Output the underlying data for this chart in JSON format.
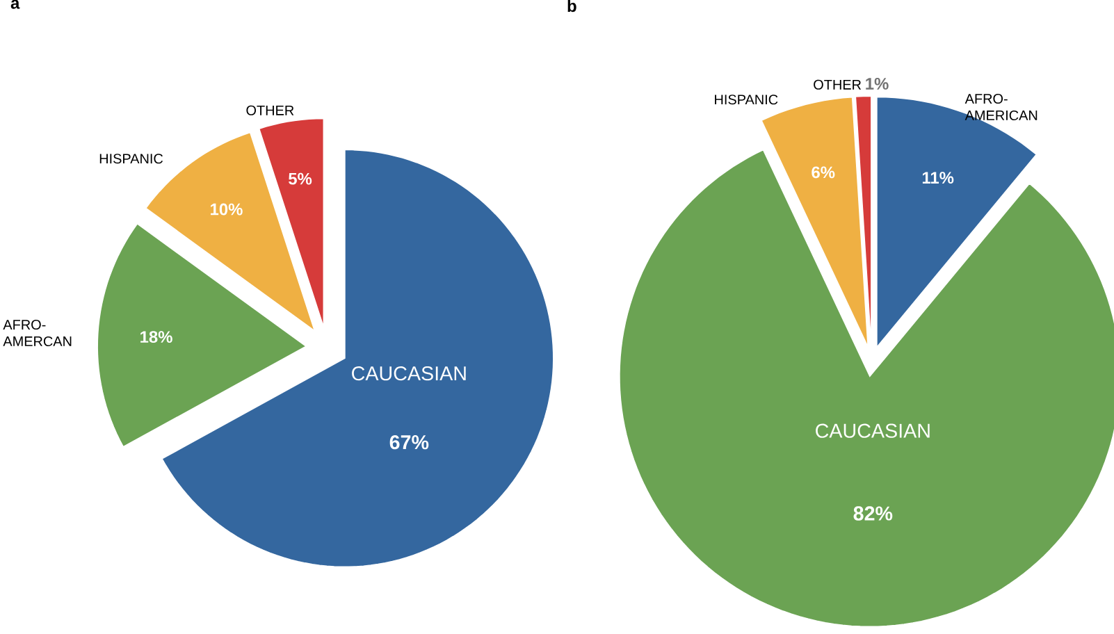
{
  "chart_data": [
    {
      "type": "pie",
      "title": "a",
      "categories": [
        "CAUCASIAN",
        "AFRO-AMERCAN",
        "HISPANIC",
        "OTHER"
      ],
      "values": [
        67,
        18,
        10,
        5
      ],
      "value_labels": [
        "67%",
        "18%",
        "10%",
        "5%"
      ],
      "colors": [
        "#34679f",
        "#6ba353",
        "#efb043",
        "#d63b3a"
      ]
    },
    {
      "type": "pie",
      "title": "b",
      "categories": [
        "AFRO-AMERICAN",
        "CAUCASIAN",
        "HISPANIC",
        "OTHER"
      ],
      "values": [
        11,
        82,
        6,
        1
      ],
      "value_labels": [
        "11%",
        "82%",
        "6%",
        "1%"
      ],
      "colors": [
        "#34679f",
        "#6ba353",
        "#efb043",
        "#d63b3a"
      ]
    }
  ]
}
